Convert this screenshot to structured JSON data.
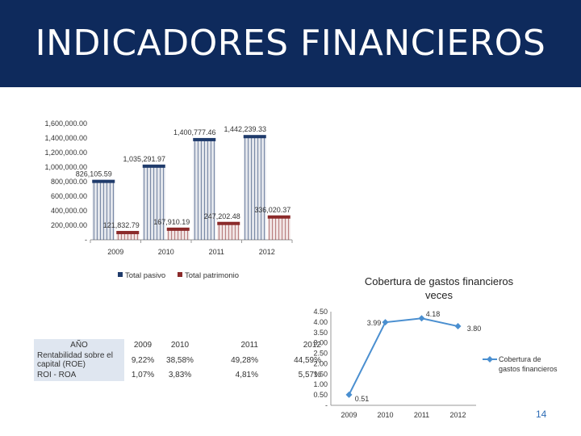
{
  "header": {
    "title": "INDICADORES FINANCIEROS",
    "bg": "#0e2a5c"
  },
  "chart_data": [
    {
      "type": "bar",
      "title": "",
      "categories": [
        "2009",
        "2010",
        "2011",
        "2012"
      ],
      "series": [
        {
          "name": "Total pasivo",
          "color": "#1f3b6b",
          "values": [
            826105.59,
            1035291.97,
            1400777.46,
            1442239.33
          ],
          "labels": [
            "826,105.59",
            "1,035,291.97",
            "1,400,777.46",
            "1,442,239.33"
          ]
        },
        {
          "name": "Total patrimonio",
          "color": "#8b2a2a",
          "values": [
            121832.79,
            167910.19,
            247202.48,
            336020.37
          ],
          "labels": [
            "121,832.79",
            "167,910.19",
            "247,202.48",
            "336,020.37"
          ]
        }
      ],
      "ylim": [
        0,
        1600000
      ],
      "yticks": [
        "-",
        "200,000.00",
        "400,000.00",
        "600,000.00",
        "800,000.00",
        "1,000,000.00",
        "1,200,000.00",
        "1,400,000.00",
        "1,600,000.00"
      ],
      "legend": "bottom"
    },
    {
      "type": "line",
      "title": "Cobertura de gastos financieros veces",
      "title_lines": [
        "Cobertura de gastos financieros",
        "veces"
      ],
      "x": [
        "2009",
        "2010",
        "2011",
        "2012"
      ],
      "series": [
        {
          "name": "Cobertura de gastos financieros",
          "name_lines": [
            "Cobertura de",
            "gastos financieros"
          ],
          "color": "#4a8fd0",
          "values": [
            0.51,
            3.99,
            4.18,
            3.8
          ],
          "labels": [
            "0.51",
            "3.99",
            "4.18",
            "3.80"
          ]
        }
      ],
      "ylim": [
        0,
        4.5
      ],
      "yticks": [
        "-",
        "0.50",
        "1.00",
        "1.50",
        "2.00",
        "2.50",
        "3.00",
        "3.50",
        "4.00",
        "4.50"
      ],
      "legend": "right"
    }
  ],
  "table": {
    "header": {
      "label": "AÑO",
      "years": [
        "2009",
        "2010",
        "2011",
        "2012"
      ]
    },
    "rows": [
      {
        "label_lines": [
          "Rentabilidad sobre el",
          "capital (ROE)"
        ],
        "values": [
          "9,22%",
          "38,58%",
          "49,28%",
          "44,59%"
        ]
      },
      {
        "label": "ROI - ROA",
        "values": [
          "1,07%",
          "3,83%",
          "4,81%",
          "5,57%"
        ]
      }
    ]
  },
  "page_number": "14"
}
